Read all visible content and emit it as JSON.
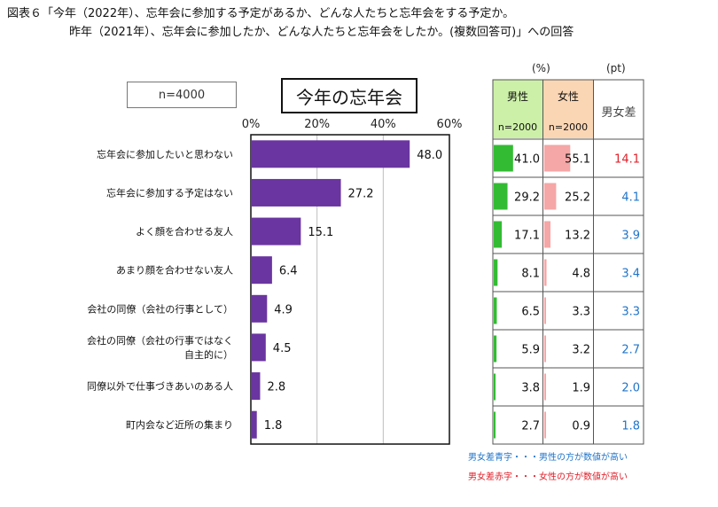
{
  "title": {
    "line1": "図表６「今年（2022年）、忘年会に参加する予定があるか、どんな人たちと忘年会をする予定か。",
    "line2": "昨年（2021年）、忘年会に参加したか、どんな人たちと忘年会をしたか。(複数回答可)」への回答"
  },
  "sample_label": "n=4000",
  "chart_title": "今年の忘年会",
  "units": {
    "percent": "(%)",
    "pt": "(pt)"
  },
  "table_headers": {
    "male": "男性",
    "female": "女性",
    "diff": "男女差",
    "male_n": "n=2000",
    "female_n": "n=2000"
  },
  "legend": {
    "blue": "男女差青字・・・男性の方が数値が高い",
    "red": "男女差赤字・・・女性の方が数値が高い"
  },
  "colors": {
    "bar": "#6a35a0",
    "male_bar": "#33bb33",
    "female_bar": "#f5a6a6",
    "diff_blue": "#1f74c9",
    "diff_red": "#e0202a"
  },
  "chart_data": {
    "type": "bar",
    "orientation": "horizontal",
    "title": "今年の忘年会",
    "xlim": [
      0,
      60
    ],
    "ticks": [
      "0%",
      "20%",
      "40%",
      "60%"
    ],
    "tick_values": [
      0,
      20,
      40,
      60
    ],
    "categories": [
      "忘年会に参加したいと思わない",
      "忘年会に参加する予定はない",
      "よく顔を合わせる友人",
      "あまり顔を合わせない友人",
      "会社の同僚（会社の行事として）",
      "会社の同僚（会社の行事ではなく\n自主的に）",
      "同僚以外で仕事づきあいのある人",
      "町内会など近所の集まり"
    ],
    "values": [
      48.0,
      27.2,
      15.1,
      6.4,
      4.9,
      4.5,
      2.8,
      1.8
    ],
    "value_labels": [
      "48.0",
      "27.2",
      "15.1",
      "6.4",
      "4.9",
      "4.5",
      "2.8",
      "1.8"
    ],
    "male": [
      41.0,
      29.2,
      17.1,
      8.1,
      6.5,
      5.9,
      3.8,
      2.7
    ],
    "male_labels": [
      "41.0",
      "29.2",
      "17.1",
      "8.1",
      "6.5",
      "5.9",
      "3.8",
      "2.7"
    ],
    "female": [
      55.1,
      25.2,
      13.2,
      4.8,
      3.3,
      3.2,
      1.9,
      0.9
    ],
    "female_labels": [
      "55.1",
      "25.2",
      "13.2",
      "4.8",
      "3.3",
      "3.2",
      "1.9",
      "0.9"
    ],
    "diff": [
      "14.1",
      "4.1",
      "3.9",
      "3.4",
      "3.3",
      "2.7",
      "2.0",
      "1.8"
    ],
    "diff_sign": [
      "female",
      "male",
      "male",
      "male",
      "male",
      "male",
      "male",
      "male"
    ]
  }
}
